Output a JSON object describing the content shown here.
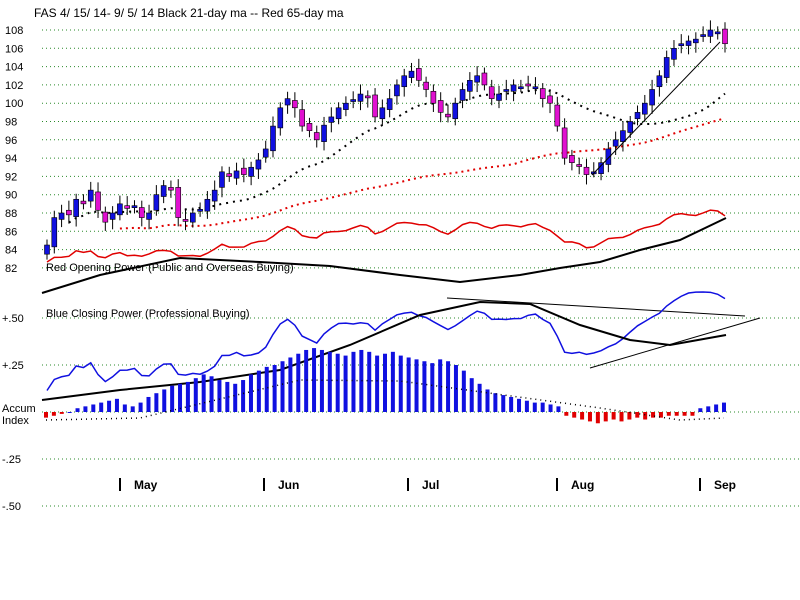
{
  "chart_data": {
    "type": "candlestick",
    "title": "FAS   4/ 15/ 14- 9/ 5/ 14    Black 21-day ma --  Red 65-day ma",
    "price_axis": {
      "ticks": [
        "108",
        "106",
        "104",
        "102",
        "100",
        "98",
        "96",
        "94",
        "92",
        "90",
        "88",
        "86",
        "84",
        "82"
      ],
      "range": [
        82,
        109
      ]
    },
    "index_axis": {
      "ticks": [
        "+.50",
        "+.25",
        "-.25",
        "-.50"
      ],
      "range": [
        -0.5,
        0.5
      ]
    },
    "months": [
      "May",
      "Jun",
      "Jul",
      "Aug",
      "Sep"
    ],
    "panel_labels": {
      "red_power": "Red Opening Power (Public and Overseas Buying)",
      "blue_power": "Blue Closing Power (Professional Buying)",
      "accum_top": "Accum",
      "accum_bottom": "Index"
    },
    "candle_colors": {
      "up": "#1010e0",
      "down": "#e010d0"
    },
    "closes": [
      84.5,
      87.5,
      88,
      87.8,
      89.5,
      89,
      90.5,
      88.3,
      87,
      88,
      89,
      88.5,
      88.8,
      87.5,
      88,
      90,
      91,
      90.5,
      87.5,
      87.2,
      88,
      88.4,
      89.5,
      90.5,
      92.5,
      92,
      92.6,
      92.2,
      93,
      93.8,
      95,
      97.5,
      99.5,
      100.5,
      99.5,
      97.5,
      97,
      96,
      97.6,
      98.5,
      99.5,
      100,
      100.4,
      101,
      100.6,
      98.5,
      99.5,
      100.5,
      102,
      103,
      103.5,
      102.5,
      101.5,
      100,
      99,
      98.5,
      100,
      101.5,
      102.5,
      103,
      102,
      100.5,
      101,
      101.5,
      102,
      101.8,
      102,
      101.8,
      100.5,
      100,
      97.5,
      94,
      93.5,
      93.2,
      92.2,
      92.5,
      93.5,
      95,
      96,
      97,
      98,
      99,
      100,
      101.5,
      103,
      105,
      106,
      106.5,
      106.8,
      107,
      107.5,
      108,
      107.8,
      106.5
    ],
    "ma21_range": [
      89.5,
      102.8
    ],
    "ma65_range": [
      89.5,
      100.5
    ],
    "red_opening_power_start": 82.0,
    "blue_closing_power_start": 82.5,
    "accum_index": [
      -0.03,
      -0.02,
      -0.01,
      0,
      0.02,
      0.03,
      0.04,
      0.05,
      0.06,
      0.07,
      0.04,
      0.03,
      0.05,
      0.08,
      0.1,
      0.12,
      0.14,
      0.15,
      0.16,
      0.18,
      0.2,
      0.19,
      0.17,
      0.16,
      0.15,
      0.17,
      0.2,
      0.22,
      0.24,
      0.25,
      0.27,
      0.29,
      0.31,
      0.33,
      0.34,
      0.33,
      0.32,
      0.31,
      0.3,
      0.32,
      0.33,
      0.32,
      0.3,
      0.31,
      0.32,
      0.3,
      0.29,
      0.28,
      0.27,
      0.26,
      0.28,
      0.27,
      0.25,
      0.22,
      0.18,
      0.15,
      0.12,
      0.1,
      0.09,
      0.08,
      0.07,
      0.06,
      0.05,
      0.05,
      0.04,
      0.03,
      -0.02,
      -0.03,
      -0.04,
      -0.05,
      -0.06,
      -0.05,
      -0.04,
      -0.05,
      -0.04,
      -0.03,
      -0.04,
      -0.03,
      -0.03,
      -0.02,
      -0.02,
      -0.02,
      -0.02,
      0.02,
      0.03,
      0.04,
      0.05
    ],
    "grid": true,
    "legend": "none"
  }
}
